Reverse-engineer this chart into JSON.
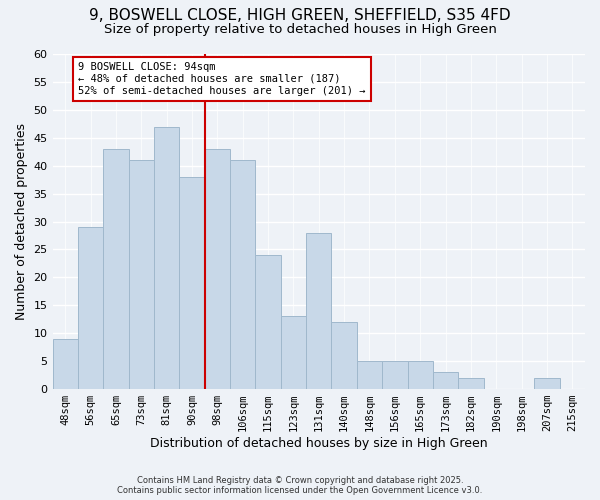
{
  "title": "9, BOSWELL CLOSE, HIGH GREEN, SHEFFIELD, S35 4FD",
  "subtitle": "Size of property relative to detached houses in High Green",
  "xlabel": "Distribution of detached houses by size in High Green",
  "ylabel": "Number of detached properties",
  "bin_labels": [
    "48sqm",
    "56sqm",
    "65sqm",
    "73sqm",
    "81sqm",
    "90sqm",
    "98sqm",
    "106sqm",
    "115sqm",
    "123sqm",
    "131sqm",
    "140sqm",
    "148sqm",
    "156sqm",
    "165sqm",
    "173sqm",
    "182sqm",
    "190sqm",
    "198sqm",
    "207sqm",
    "215sqm"
  ],
  "bar_values": [
    9,
    29,
    43,
    41,
    47,
    38,
    43,
    41,
    24,
    13,
    28,
    12,
    5,
    5,
    5,
    3,
    2,
    0,
    0,
    2
  ],
  "bar_color": "#c8d8e8",
  "bar_edge_color": "#a0b8cc",
  "vline_x": 6,
  "vline_color": "#cc0000",
  "annotation_title": "9 BOSWELL CLOSE: 94sqm",
  "annotation_line1": "← 48% of detached houses are smaller (187)",
  "annotation_line2": "52% of semi-detached houses are larger (201) →",
  "annotation_box_color": "#ffffff",
  "annotation_box_edge": "#cc0000",
  "ylim": [
    0,
    60
  ],
  "yticks": [
    0,
    5,
    10,
    15,
    20,
    25,
    30,
    35,
    40,
    45,
    50,
    55,
    60
  ],
  "background_color": "#eef2f7",
  "footer_line1": "Contains HM Land Registry data © Crown copyright and database right 2025.",
  "footer_line2": "Contains public sector information licensed under the Open Government Licence v3.0.",
  "title_fontsize": 11,
  "subtitle_fontsize": 9.5
}
